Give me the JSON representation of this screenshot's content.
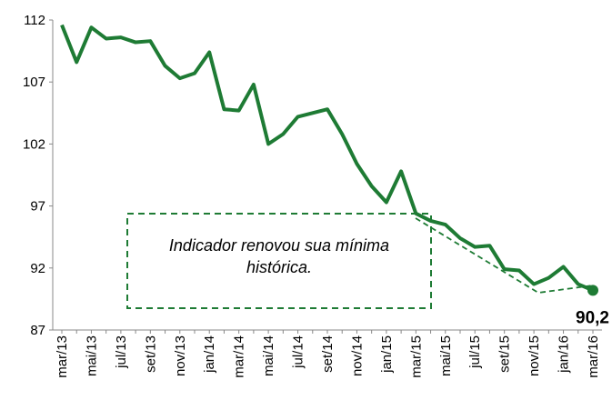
{
  "chart_data": {
    "type": "line",
    "categories": [
      "mar/13",
      null,
      "mai/13",
      null,
      "jul/13",
      null,
      "set/13",
      null,
      "nov/13",
      null,
      "jan/14",
      null,
      "mar/14",
      null,
      "mai/14",
      null,
      "jul/14",
      null,
      "set/14",
      null,
      "nov/14",
      null,
      "jan/15",
      null,
      "mar/15",
      null,
      "mai/15",
      null,
      "jul/15",
      null,
      "set/15",
      null,
      "nov/15",
      null,
      "jan/16",
      null,
      "mar/16"
    ],
    "series": [
      {
        "name": "Indicador",
        "color": "#1e7b34",
        "values": [
          111.6,
          108.6,
          111.4,
          110.5,
          110.6,
          110.2,
          110.3,
          108.3,
          107.3,
          107.7,
          109.4,
          104.8,
          104.7,
          106.8,
          102.0,
          102.8,
          104.2,
          104.5,
          104.8,
          102.8,
          100.4,
          98.6,
          97.3,
          99.8,
          96.4,
          95.8,
          95.5,
          94.4,
          93.7,
          93.8,
          91.9,
          91.8,
          90.7,
          91.2,
          92.1,
          90.7,
          90.2
        ],
        "value_labels": [
          null,
          null,
          null,
          null,
          null,
          null,
          null,
          null,
          null,
          null,
          null,
          null,
          null,
          null,
          null,
          null,
          null,
          null,
          null,
          null,
          null,
          null,
          null,
          null,
          null,
          null,
          null,
          null,
          null,
          null,
          null,
          null,
          null,
          null,
          null,
          null,
          "90,2"
        ]
      }
    ],
    "annotation": "Indicador renovou sua mínima histórica.",
    "ylim": [
      87,
      112
    ],
    "yticks": [
      87,
      92,
      97,
      102,
      107,
      112
    ],
    "grid": false
  }
}
